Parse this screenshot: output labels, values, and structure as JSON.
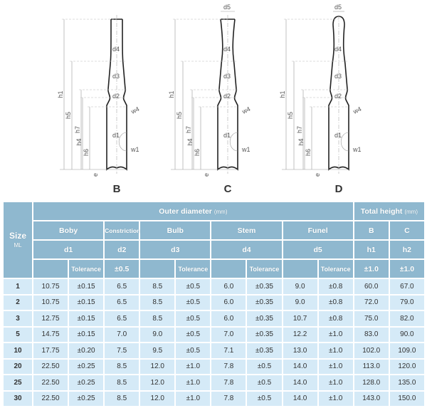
{
  "drawings": [
    {
      "label": "B",
      "type": "B"
    },
    {
      "label": "C",
      "type": "C"
    },
    {
      "label": "D",
      "type": "D"
    }
  ],
  "dimension_labels": {
    "h1": "h1",
    "h5": "h5",
    "h7": "h7",
    "h4": "h4",
    "h6": "h6",
    "e": "e",
    "d1": "d1",
    "d2": "d2",
    "d3": "d3",
    "d4": "d4",
    "d5": "d5",
    "w1": "w1",
    "w4": "w4"
  },
  "table": {
    "size_header": "Size",
    "size_unit": "ML",
    "outer_diameter": "Outer diameter",
    "outer_unit": "(mm)",
    "total_height": "Total height",
    "total_unit": "(mm)",
    "groups": [
      "Boby",
      "Constriction",
      "Bulb",
      "Stem",
      "Funel",
      "B",
      "C"
    ],
    "symbols": [
      "d1",
      "d2",
      "d3",
      "d4",
      "d5",
      "h1",
      "h2"
    ],
    "tolerance_label": "Tolerance",
    "fixed_tolerances": {
      "d2": "±0.5",
      "h1": "±1.0",
      "h2": "±1.0"
    },
    "rows": [
      [
        "1",
        "10.75",
        "±0.15",
        "6.5",
        "8.5",
        "±0.5",
        "6.0",
        "±0.35",
        "9.0",
        "±0.8",
        "60.0",
        "67.0"
      ],
      [
        "2",
        "10.75",
        "±0.15",
        "6.5",
        "8.5",
        "±0.5",
        "6.0",
        "±0.35",
        "9.0",
        "±0.8",
        "72.0",
        "79.0"
      ],
      [
        "3",
        "12.75",
        "±0.15",
        "6.5",
        "8.5",
        "±0.5",
        "6.0",
        "±0.35",
        "10.7",
        "±0.8",
        "75.0",
        "82.0"
      ],
      [
        "5",
        "14.75",
        "±0.15",
        "7.0",
        "9.0",
        "±0.5",
        "7.0",
        "±0.35",
        "12.2",
        "±1.0",
        "83.0",
        "90.0"
      ],
      [
        "10",
        "17.75",
        "±0.20",
        "7.5",
        "9.5",
        "±0.5",
        "7.1",
        "±0.35",
        "13.0",
        "±1.0",
        "102.0",
        "109.0"
      ],
      [
        "20",
        "22.50",
        "±0.25",
        "8.5",
        "12.0",
        "±1.0",
        "7.8",
        "±0.5",
        "14.0",
        "±1.0",
        "113.0",
        "120.0"
      ],
      [
        "25",
        "22.50",
        "±0.25",
        "8.5",
        "12.0",
        "±1.0",
        "7.8",
        "±0.5",
        "14.0",
        "±1.0",
        "128.0",
        "135.0"
      ],
      [
        "30",
        "22.50",
        "±0.25",
        "8.5",
        "12.0",
        "±1.0",
        "7.8",
        "±0.5",
        "14.0",
        "±1.0",
        "143.0",
        "150.0"
      ]
    ]
  },
  "colors": {
    "header": "#8fb8cf",
    "row": "#d5eaf7"
  }
}
